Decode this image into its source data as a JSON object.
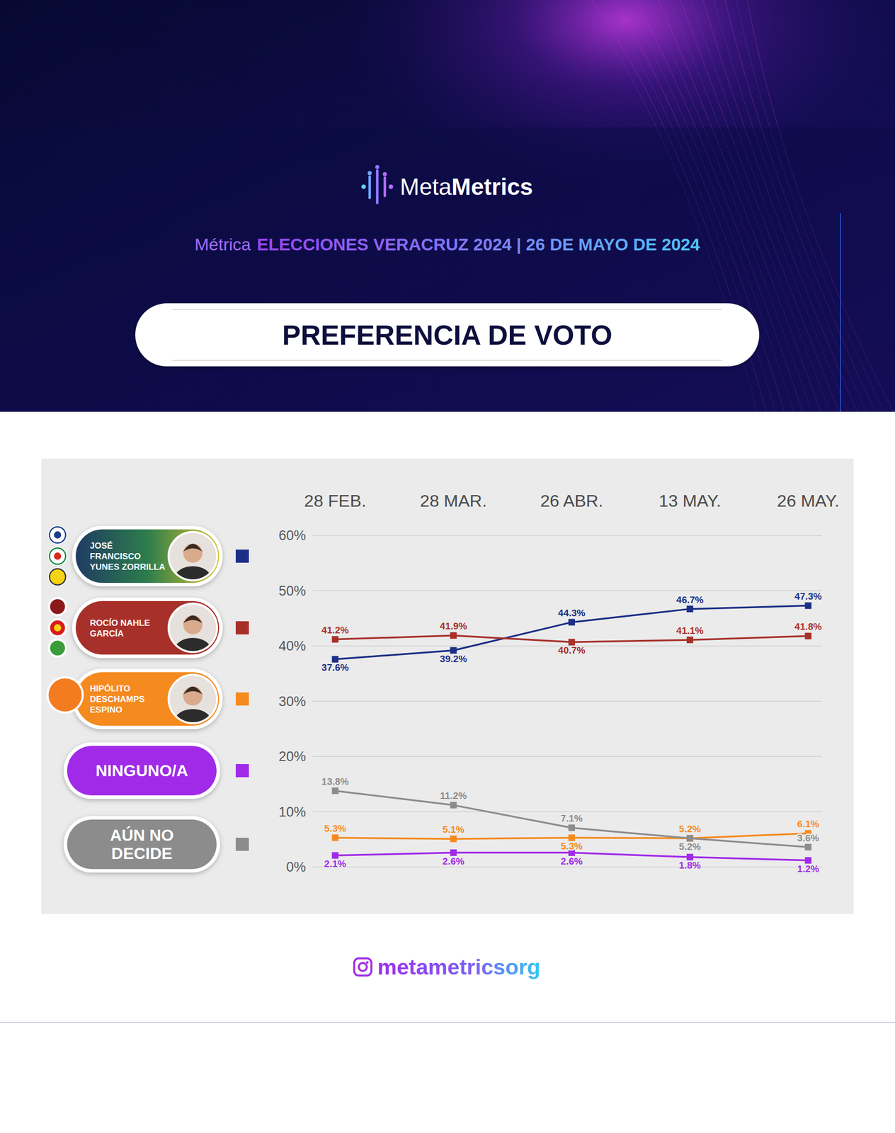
{
  "header": {
    "logo_light": "Meta",
    "logo_bold": "Metrics",
    "subtitle_lead": "Métrica",
    "subtitle": "ELECCIONES VERACRUZ 2024 | 26 DE MAYO DE 2024"
  },
  "chart_data": {
    "type": "line",
    "title": "PREFERENCIA DE VOTO",
    "categories": [
      "28 FEB.",
      "28 MAR.",
      "26 ABR.",
      "13 MAY.",
      "26 MAY."
    ],
    "ylim": [
      0,
      60
    ],
    "yticks": [
      {
        "value": 0,
        "label": "0%"
      },
      {
        "value": 10,
        "label": "10%"
      },
      {
        "value": 20,
        "label": "20%"
      },
      {
        "value": 30,
        "label": "30%"
      },
      {
        "value": 40,
        "label": "40%"
      },
      {
        "value": 50,
        "label": "50%"
      },
      {
        "value": 60,
        "label": "60%"
      }
    ],
    "grid": true,
    "data_labels": true,
    "legend": "left",
    "marker": "square",
    "series": [
      {
        "name": "JOSÉ FRANCISCO YUNES ZORRILLA",
        "color": "#1b2f86",
        "values": [
          37.6,
          39.2,
          44.3,
          46.7,
          47.3
        ],
        "value_labels": [
          "37.6%",
          "39.2%",
          "44.3%",
          "46.7%",
          "47.3%"
        ]
      },
      {
        "name": "ROCÍO NAHLE GARCÍA",
        "color": "#a8302a",
        "values": [
          41.2,
          41.9,
          40.7,
          41.1,
          41.8
        ],
        "value_labels": [
          "41.2%",
          "41.9%",
          "40.7%",
          "41.1%",
          "41.8%"
        ]
      },
      {
        "name": "HIPÓLITO DESCHAMPS ESPINO",
        "color": "#f58a1f",
        "values": [
          5.3,
          5.1,
          5.3,
          5.2,
          6.1
        ],
        "value_labels": [
          "5.3%",
          "5.1%",
          "5.3%",
          "5.2%",
          "6.1%"
        ]
      },
      {
        "name": "NINGUNO/A",
        "color": "#a02ae8",
        "values": [
          2.1,
          2.6,
          2.6,
          1.8,
          1.2
        ],
        "value_labels": [
          "2.1%",
          "2.6%",
          "2.6%",
          "1.8%",
          "1.2%"
        ]
      },
      {
        "name": "AÚN NO DECIDE",
        "color": "#8c8c8c",
        "values": [
          13.8,
          11.2,
          7.1,
          5.2,
          3.6
        ],
        "value_labels": [
          "13.8%",
          "11.2%",
          "7.1%",
          "5.2%",
          "3.6%"
        ]
      }
    ]
  },
  "footer": {
    "handle": "metametricsorg"
  }
}
